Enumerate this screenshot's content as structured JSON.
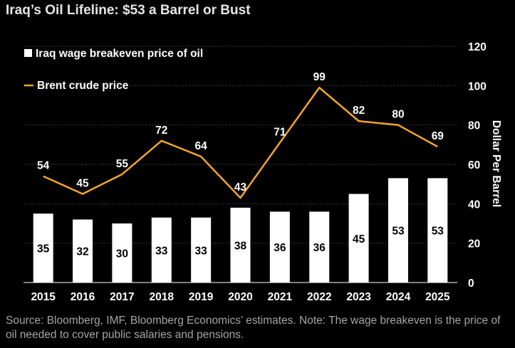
{
  "title": "Iraq’s Oil Lifeline: $53 a Barrel or Bust",
  "source": "Source: Bloomberg, IMF, Bloomberg Economics’ estimates. Note: The wage breakeven is the price of oil needed to cover public salaries and pensions.",
  "colors": {
    "background": "#000000",
    "bar": "#ffffff",
    "line": "#f6a52a",
    "grid": "#3a3a3a",
    "text": "#ffffff"
  },
  "chart_data": {
    "type": "bar+line",
    "categories": [
      "2015",
      "2016",
      "2017",
      "2018",
      "2019",
      "2020",
      "2021",
      "2022",
      "2023",
      "2024",
      "2025"
    ],
    "series": [
      {
        "name": "Iraq wage breakeven price of oil",
        "type": "bar",
        "values": [
          35,
          32,
          30,
          33,
          33,
          38,
          36,
          36,
          45,
          53,
          53
        ]
      },
      {
        "name": "Brent crude price",
        "type": "line",
        "values": [
          54,
          45,
          55,
          72,
          64,
          43,
          71,
          99,
          82,
          80,
          69
        ]
      }
    ],
    "ylabel": "Dollar Per Barrel",
    "ylim": [
      0,
      120
    ],
    "yticks": [
      0,
      20,
      40,
      60,
      80,
      100,
      120
    ],
    "yaxis_side": "right",
    "grid": true,
    "legend": "top-left"
  }
}
